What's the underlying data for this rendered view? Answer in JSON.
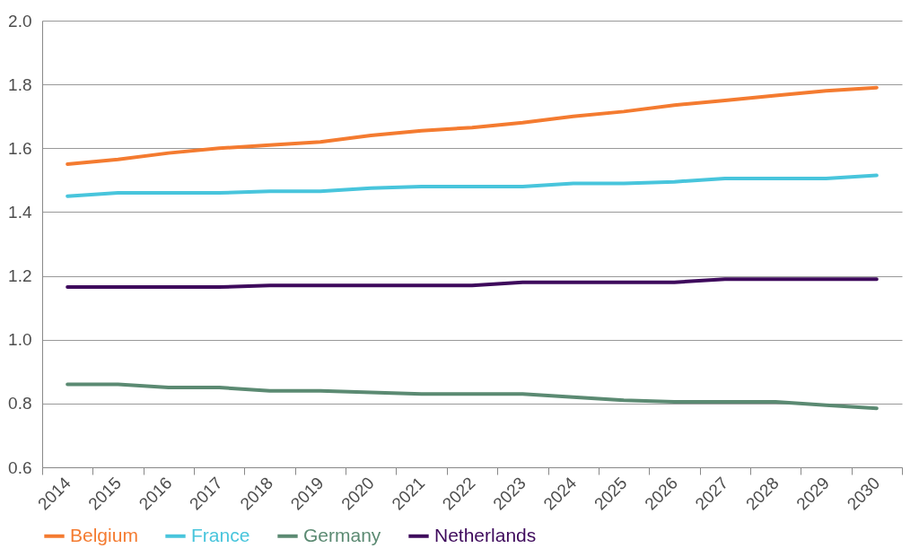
{
  "chart_data": {
    "type": "line",
    "categories": [
      "2014",
      "2015",
      "2016",
      "2017",
      "2018",
      "2019",
      "2020",
      "2021",
      "2022",
      "2023",
      "2024",
      "2025",
      "2026",
      "2027",
      "2028",
      "2029",
      "2030"
    ],
    "series": [
      {
        "name": "Belgium",
        "color": "#f47b30",
        "values": [
          1.55,
          1.565,
          1.585,
          1.6,
          1.61,
          1.62,
          1.64,
          1.655,
          1.665,
          1.68,
          1.7,
          1.715,
          1.735,
          1.75,
          1.765,
          1.78,
          1.79
        ]
      },
      {
        "name": "France",
        "color": "#48c5dc",
        "values": [
          1.45,
          1.46,
          1.46,
          1.46,
          1.465,
          1.465,
          1.475,
          1.48,
          1.48,
          1.48,
          1.49,
          1.49,
          1.495,
          1.505,
          1.505,
          1.505,
          1.515
        ]
      },
      {
        "name": "Germany",
        "color": "#5b8a72",
        "values": [
          0.86,
          0.86,
          0.85,
          0.85,
          0.84,
          0.84,
          0.835,
          0.83,
          0.83,
          0.83,
          0.82,
          0.81,
          0.805,
          0.805,
          0.805,
          0.795,
          0.785
        ]
      },
      {
        "name": "Netherlands",
        "color": "#3e0a5c",
        "values": [
          1.165,
          1.165,
          1.165,
          1.165,
          1.17,
          1.17,
          1.17,
          1.17,
          1.17,
          1.18,
          1.18,
          1.18,
          1.18,
          1.19,
          1.19,
          1.19,
          1.19
        ]
      }
    ],
    "ylim": [
      0.6,
      2.0
    ],
    "yticks": [
      {
        "value": 0.6,
        "label": "0.6"
      },
      {
        "value": 0.8,
        "label": "0.8"
      },
      {
        "value": 1.0,
        "label": "1.0"
      },
      {
        "value": 1.2,
        "label": "1.2"
      },
      {
        "value": 1.4,
        "label": "1.4"
      },
      {
        "value": 1.6,
        "label": "1.6"
      },
      {
        "value": 1.8,
        "label": "1.8"
      },
      {
        "value": 2.0,
        "label": "2.0"
      }
    ],
    "grid": "y",
    "legend": "bottom",
    "marker": "none",
    "line_style": "solid"
  }
}
